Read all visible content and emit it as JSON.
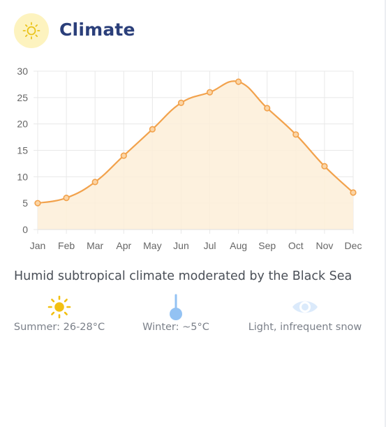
{
  "header": {
    "icon": "sun-icon",
    "title": "Climate"
  },
  "chart_data": {
    "type": "line",
    "fill": "area",
    "categories": [
      "Jan",
      "Feb",
      "Mar",
      "Apr",
      "May",
      "Jun",
      "Jul",
      "Aug",
      "Sep",
      "Oct",
      "Nov",
      "Dec"
    ],
    "values": [
      5,
      6,
      9,
      14,
      19,
      24,
      26,
      28,
      23,
      18,
      12,
      7
    ],
    "ylim": [
      0,
      30
    ],
    "yticks": [
      0,
      5,
      10,
      15,
      20,
      25,
      30
    ],
    "grid": true,
    "legend": "none",
    "colors": {
      "line": "#f2a24c",
      "fill": "#fdeed8",
      "point_fill": "#fbd5a6",
      "grid": "#e8e8e8"
    }
  },
  "description": "Humid subtropical climate moderated by the Black Sea",
  "facts": [
    {
      "icon": "sun-icon",
      "label": "Summer: 26-28°C",
      "color": "#f2c012"
    },
    {
      "icon": "thermometer-icon",
      "label": "Winter: ~5°C",
      "color": "#93c2f3"
    },
    {
      "icon": "eye-icon",
      "label": "Light, infrequent snow",
      "color": "#c9e0f7"
    }
  ]
}
